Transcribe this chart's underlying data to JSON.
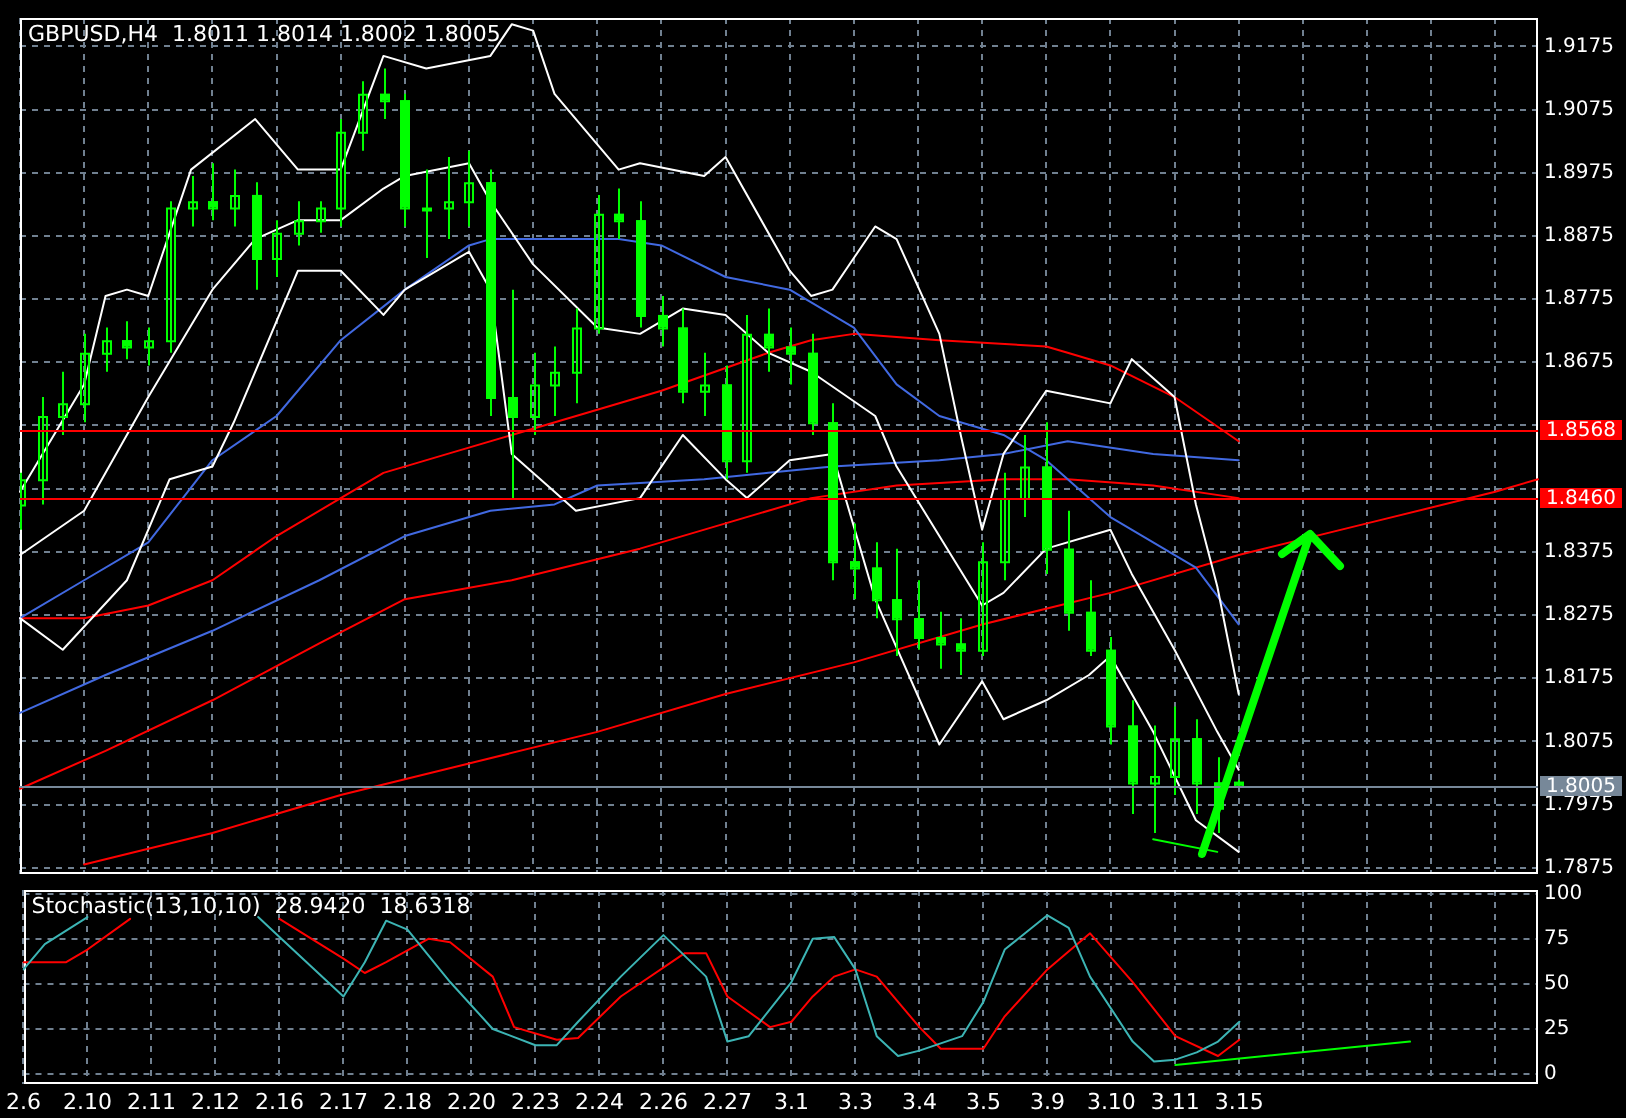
{
  "chart_data": [
    {
      "type": "candlestick",
      "title": "GBPUSD,H4  1.8011 1.8014 1.8002 1.8005",
      "color": "#00ff00",
      "categories": [
        "2.6",
        null,
        null,
        "2.10",
        null,
        null,
        "2.11",
        null,
        null,
        "2.12",
        null,
        null,
        "2.16",
        null,
        null,
        "2.17",
        null,
        null,
        "2.18",
        null,
        null,
        "2.20",
        null,
        null,
        "2.23",
        null,
        null,
        "2.24",
        null,
        null,
        "2.26",
        null,
        null,
        "2.27",
        null,
        null,
        "3.1",
        null,
        null,
        "3.3",
        null,
        null,
        "3.4",
        null,
        null,
        "3.5",
        null,
        null,
        "3.9",
        null,
        null,
        "3.10",
        null,
        null,
        "3.11",
        null,
        null,
        "3.15",
        null,
        null,
        null,
        null,
        null,
        null,
        null,
        null,
        null,
        null,
        null,
        null,
        null,
        null
      ],
      "ohlc": [
        [
          1.845,
          1.85,
          1.841,
          1.849
        ],
        [
          1.849,
          1.862,
          1.845,
          1.859
        ],
        [
          1.859,
          1.866,
          1.856,
          1.861
        ],
        [
          1.861,
          1.872,
          1.858,
          1.869
        ],
        [
          1.869,
          1.873,
          1.866,
          1.871
        ],
        [
          1.871,
          1.874,
          1.868,
          1.87
        ],
        [
          1.87,
          1.873,
          1.867,
          1.871
        ],
        [
          1.871,
          1.893,
          1.869,
          1.892
        ],
        [
          1.892,
          1.897,
          1.889,
          1.893
        ],
        [
          1.893,
          1.899,
          1.89,
          1.892
        ],
        [
          1.892,
          1.898,
          1.889,
          1.894
        ],
        [
          1.894,
          1.896,
          1.879,
          1.884
        ],
        [
          1.884,
          1.89,
          1.881,
          1.888
        ],
        [
          1.888,
          1.893,
          1.886,
          1.89
        ],
        [
          1.89,
          1.893,
          1.888,
          1.892
        ],
        [
          1.892,
          1.906,
          1.889,
          1.904
        ],
        [
          1.904,
          1.912,
          1.901,
          1.91
        ],
        [
          1.91,
          1.914,
          1.906,
          1.909
        ],
        [
          1.909,
          1.91,
          1.889,
          1.892
        ],
        [
          1.892,
          1.898,
          1.884,
          1.892
        ],
        [
          1.892,
          1.9,
          1.887,
          1.893
        ],
        [
          1.893,
          1.901,
          1.889,
          1.896
        ],
        [
          1.896,
          1.898,
          1.859,
          1.862
        ],
        [
          1.862,
          1.879,
          1.846,
          1.859
        ],
        [
          1.859,
          1.869,
          1.856,
          1.864
        ],
        [
          1.864,
          1.87,
          1.859,
          1.866
        ],
        [
          1.866,
          1.876,
          1.861,
          1.873
        ],
        [
          1.873,
          1.894,
          1.872,
          1.891
        ],
        [
          1.891,
          1.895,
          1.887,
          1.89
        ],
        [
          1.89,
          1.893,
          1.873,
          1.875
        ],
        [
          1.875,
          1.878,
          1.87,
          1.873
        ],
        [
          1.873,
          1.876,
          1.861,
          1.863
        ],
        [
          1.863,
          1.869,
          1.859,
          1.864
        ],
        [
          1.864,
          1.867,
          1.849,
          1.852
        ],
        [
          1.852,
          1.875,
          1.85,
          1.872
        ],
        [
          1.872,
          1.876,
          1.866,
          1.87
        ],
        [
          1.87,
          1.873,
          1.864,
          1.869
        ],
        [
          1.869,
          1.872,
          1.856,
          1.858
        ],
        [
          1.858,
          1.861,
          1.833,
          1.836
        ],
        [
          1.836,
          1.842,
          1.83,
          1.835
        ],
        [
          1.835,
          1.839,
          1.827,
          1.83
        ],
        [
          1.83,
          1.838,
          1.821,
          1.827
        ],
        [
          1.827,
          1.833,
          1.822,
          1.824
        ],
        [
          1.824,
          1.828,
          1.819,
          1.823
        ],
        [
          1.823,
          1.827,
          1.818,
          1.822
        ],
        [
          1.822,
          1.839,
          1.821,
          1.836
        ],
        [
          1.836,
          1.85,
          1.833,
          1.846
        ],
        [
          1.846,
          1.856,
          1.843,
          1.851
        ],
        [
          1.851,
          1.858,
          1.834,
          1.838
        ],
        [
          1.838,
          1.844,
          1.825,
          1.828
        ],
        [
          1.828,
          1.833,
          1.821,
          1.822
        ],
        [
          1.822,
          1.824,
          1.807,
          1.81
        ],
        [
          1.81,
          1.814,
          1.796,
          1.801
        ],
        [
          1.801,
          1.81,
          1.793,
          1.802
        ],
        [
          1.802,
          1.813,
          1.799,
          1.808
        ],
        [
          1.808,
          1.811,
          1.796,
          1.801
        ],
        [
          1.801,
          1.805,
          1.793,
          1.797
        ],
        [
          1.8011,
          1.8014,
          1.8002,
          1.8005
        ],
        null,
        null,
        null,
        null,
        null,
        null,
        null,
        null,
        null,
        null,
        null,
        null,
        null,
        null
      ],
      "series": [
        {
          "type": "line",
          "color": "#ffffff",
          "values": [
            1.847,
            null,
            null,
            1.864,
            1.878,
            1.879,
            1.878,
            null,
            1.898,
            null,
            null,
            1.906,
            null,
            1.898,
            null,
            1.898,
            null,
            1.916,
            null,
            1.914,
            null,
            null,
            1.916,
            1.921,
            1.92,
            1.91,
            null,
            null,
            1.898,
            1.899,
            null,
            null,
            1.897,
            1.9,
            null,
            null,
            1.882,
            1.878,
            1.879,
            1.884,
            1.889,
            1.887,
            null,
            1.872,
            1.856,
            1.841,
            1.853,
            null,
            1.863,
            null,
            null,
            1.861,
            1.868,
            null,
            1.862,
            1.845,
            1.832,
            1.815,
            null,
            null,
            null,
            null,
            null,
            null,
            null,
            null,
            null,
            null,
            null,
            null,
            null,
            null
          ]
        },
        {
          "type": "line",
          "color": "#ffffff",
          "values": [
            1.837,
            null,
            null,
            1.844,
            null,
            null,
            1.862,
            null,
            null,
            1.879,
            null,
            1.887,
            null,
            1.89,
            null,
            1.89,
            null,
            1.895,
            1.897,
            null,
            null,
            1.899,
            1.893,
            null,
            1.883,
            null,
            null,
            1.873,
            null,
            1.872,
            null,
            1.876,
            null,
            1.875,
            null,
            1.869,
            null,
            1.866,
            null,
            null,
            1.859,
            1.851,
            null,
            null,
            null,
            1.829,
            1.831,
            null,
            1.838,
            null,
            null,
            1.841,
            1.834,
            null,
            1.822,
            null,
            1.809,
            1.803,
            null,
            null,
            null,
            null,
            null,
            null,
            null,
            null,
            null,
            null,
            null,
            null,
            null,
            null
          ]
        },
        {
          "type": "line",
          "color": "#ffffff",
          "values": [
            1.827,
            null,
            1.822,
            null,
            null,
            1.833,
            null,
            1.849,
            null,
            1.851,
            1.858,
            null,
            null,
            1.882,
            null,
            1.882,
            null,
            1.875,
            1.879,
            null,
            null,
            1.885,
            1.879,
            1.853,
            null,
            1.847,
            1.844,
            null,
            null,
            1.846,
            null,
            1.856,
            null,
            1.849,
            1.846,
            null,
            1.852,
            null,
            1.853,
            null,
            1.83,
            null,
            null,
            1.807,
            null,
            1.817,
            1.811,
            null,
            1.814,
            null,
            1.818,
            1.821,
            null,
            1.809,
            null,
            1.795,
            null,
            1.79,
            null,
            null,
            null,
            null,
            null,
            null,
            null,
            null,
            null,
            null,
            null,
            null,
            null,
            null
          ]
        },
        {
          "type": "line",
          "color": "#4169e1",
          "values": [
            1.827,
            null,
            null,
            1.833,
            null,
            null,
            1.839,
            null,
            null,
            1.852,
            null,
            null,
            1.859,
            null,
            null,
            1.871,
            null,
            null,
            1.879,
            null,
            null,
            1.886,
            1.887,
            null,
            null,
            1.887,
            null,
            null,
            1.887,
            null,
            1.886,
            null,
            null,
            1.881,
            null,
            null,
            1.879,
            null,
            null,
            1.873,
            null,
            1.864,
            null,
            1.859,
            null,
            null,
            1.856,
            null,
            1.852,
            null,
            null,
            1.843,
            null,
            null,
            null,
            1.835,
            null,
            1.826,
            null,
            null,
            null,
            null,
            null,
            null,
            null,
            null,
            null,
            null,
            null,
            null,
            null,
            null
          ]
        },
        {
          "type": "line",
          "color": "#4169e1",
          "values": [
            1.812,
            null,
            null,
            null,
            1.818,
            null,
            null,
            null,
            null,
            1.825,
            null,
            null,
            null,
            null,
            1.833,
            null,
            null,
            null,
            1.84,
            null,
            null,
            null,
            1.844,
            null,
            null,
            1.845,
            null,
            1.848,
            null,
            null,
            null,
            null,
            1.849,
            null,
            null,
            1.85,
            null,
            null,
            1.851,
            null,
            null,
            null,
            null,
            1.852,
            null,
            null,
            1.853,
            null,
            null,
            1.855,
            null,
            null,
            null,
            1.853,
            null,
            null,
            null,
            1.852,
            null,
            null,
            null,
            null,
            null,
            null,
            null,
            null,
            null,
            null,
            null,
            null,
            null,
            null
          ]
        },
        {
          "type": "line",
          "color": "#ff0000",
          "values": [
            1.827,
            null,
            null,
            1.827,
            null,
            null,
            1.829,
            null,
            null,
            1.833,
            null,
            null,
            1.84,
            null,
            null,
            1.846,
            null,
            1.85,
            null,
            null,
            1.853,
            null,
            null,
            1.856,
            null,
            null,
            null,
            1.86,
            null,
            null,
            1.863,
            null,
            null,
            null,
            null,
            1.869,
            null,
            1.871,
            null,
            1.872,
            null,
            null,
            null,
            1.871,
            null,
            null,
            null,
            null,
            1.87,
            1.869,
            null,
            1.867,
            null,
            null,
            1.862,
            null,
            null,
            1.855,
            null,
            null,
            null,
            null,
            null,
            null,
            null,
            null,
            null,
            null,
            null,
            null,
            null,
            null
          ]
        },
        {
          "type": "line",
          "color": "#ff0000",
          "values": [
            1.8,
            null,
            null,
            null,
            1.806,
            null,
            null,
            null,
            null,
            1.814,
            null,
            null,
            null,
            null,
            1.823,
            null,
            null,
            null,
            1.83,
            null,
            null,
            null,
            null,
            1.833,
            null,
            null,
            null,
            null,
            null,
            1.838,
            null,
            null,
            null,
            1.842,
            null,
            null,
            null,
            1.846,
            null,
            null,
            null,
            1.848,
            null,
            null,
            null,
            null,
            1.849,
            null,
            null,
            1.849,
            null,
            null,
            null,
            1.848,
            null,
            null,
            null,
            1.846,
            null,
            null,
            null,
            null,
            null,
            null,
            null,
            null,
            null,
            null,
            null,
            null,
            null,
            null
          ]
        },
        {
          "type": "line",
          "color": "#ff0000",
          "values": [
            null,
            null,
            null,
            1.788,
            null,
            null,
            null,
            null,
            null,
            1.793,
            null,
            null,
            null,
            null,
            null,
            1.799,
            null,
            null,
            null,
            null,
            null,
            1.804,
            null,
            null,
            null,
            null,
            null,
            1.809,
            null,
            null,
            null,
            null,
            null,
            1.815,
            null,
            null,
            null,
            null,
            null,
            1.82,
            null,
            null,
            null,
            null,
            null,
            1.826,
            null,
            null,
            null,
            null,
            null,
            1.831,
            null,
            null,
            null,
            null,
            null,
            1.837,
            null,
            null,
            null,
            null,
            null,
            1.842,
            null,
            null,
            null,
            null,
            null,
            1.847,
            null,
            1.849
          ]
        },
        {
          "type": "line",
          "color": "#00ff00",
          "values": [
            null,
            null,
            null,
            null,
            null,
            null,
            null,
            null,
            null,
            null,
            null,
            null,
            null,
            null,
            null,
            null,
            null,
            null,
            null,
            null,
            null,
            null,
            null,
            null,
            null,
            null,
            null,
            null,
            null,
            null,
            null,
            null,
            null,
            null,
            null,
            null,
            null,
            null,
            null,
            null,
            null,
            null,
            null,
            null,
            null,
            null,
            null,
            null,
            null,
            null,
            null,
            null,
            null,
            1.792,
            null,
            null,
            1.79,
            null,
            null,
            null,
            null,
            null,
            null,
            null,
            null,
            null,
            null,
            null,
            null,
            null,
            null,
            null
          ]
        }
      ],
      "ref_lines": [
        {
          "axis": "y",
          "value": 1.8568,
          "label": "1.8568",
          "color": "#ff0000"
        },
        {
          "axis": "y",
          "value": 1.846,
          "label": "1.8460",
          "color": "#ff0000"
        },
        {
          "axis": "y",
          "value": 1.8005,
          "label": "1.8005",
          "color": "#778899"
        }
      ],
      "ylim": [
        1.7865,
        1.922
      ],
      "yticks": [
        1.7875,
        1.7975,
        1.8075,
        1.8175,
        1.8275,
        1.8375,
        {
          "value": 1.8475,
          "label": null
        },
        {
          "value": 1.8575,
          "label": null
        },
        1.8675,
        1.8775,
        1.8875,
        1.8975,
        1.9075,
        1.9175
      ],
      "tick_labels": "y",
      "grid": true
    },
    {
      "type": "line",
      "title": "Stochastic(13,10,10)  28.9420  18.6318",
      "categories": [
        "2.6",
        null,
        null,
        "2.10",
        null,
        null,
        "2.11",
        null,
        null,
        "2.12",
        null,
        null,
        "2.16",
        null,
        null,
        "2.17",
        null,
        null,
        "2.18",
        null,
        null,
        "2.20",
        null,
        null,
        "2.23",
        null,
        null,
        "2.24",
        null,
        null,
        "2.26",
        null,
        null,
        "2.27",
        null,
        null,
        "3.1",
        null,
        null,
        "3.3",
        null,
        null,
        "3.4",
        null,
        null,
        "3.5",
        null,
        null,
        "3.9",
        null,
        null,
        "3.10",
        null,
        null,
        "3.11",
        null,
        null,
        "3.15",
        null,
        null,
        null,
        null,
        null,
        null,
        null,
        null,
        null,
        null,
        null,
        null,
        null,
        null
      ],
      "series": [
        {
          "color": "#3cb4b4",
          "values": [
            58,
            72,
            null,
            87,
            null,
            null,
            null,
            null,
            null,
            null,
            null,
            87,
            76,
            null,
            null,
            43,
            62,
            85,
            80,
            null,
            51,
            null,
            25,
            null,
            16,
            16,
            29,
            null,
            54,
            null,
            77,
            null,
            54,
            18,
            21,
            null,
            51,
            75,
            76,
            58,
            21,
            10,
            13,
            null,
            21,
            40,
            69,
            null,
            88,
            81,
            54,
            null,
            18,
            7,
            8,
            12,
            18,
            29,
            null,
            null,
            null,
            null,
            null,
            null,
            null,
            null,
            null,
            null,
            null,
            null,
            null,
            null
          ]
        },
        {
          "color": "#ff0000",
          "values": [
            62,
            null,
            62,
            69,
            null,
            86,
            null,
            null,
            null,
            null,
            null,
            null,
            86,
            null,
            null,
            64,
            56,
            62,
            null,
            75,
            73,
            null,
            54,
            26,
            null,
            19,
            20,
            null,
            43,
            null,
            null,
            67,
            67,
            43,
            null,
            26,
            29,
            43,
            54,
            58,
            54,
            null,
            26,
            14,
            null,
            14,
            32,
            null,
            58,
            null,
            78,
            null,
            51,
            null,
            21,
            null,
            10,
            19,
            null,
            null,
            null,
            null,
            null,
            null,
            null,
            null,
            null,
            null,
            null,
            null,
            null,
            null
          ]
        },
        {
          "color": "#00ff00",
          "values": [
            null,
            null,
            null,
            null,
            null,
            null,
            null,
            null,
            null,
            null,
            null,
            null,
            null,
            null,
            null,
            null,
            null,
            null,
            null,
            null,
            null,
            null,
            null,
            null,
            null,
            null,
            null,
            null,
            null,
            null,
            null,
            null,
            null,
            null,
            null,
            null,
            null,
            null,
            null,
            null,
            null,
            null,
            null,
            null,
            null,
            null,
            null,
            null,
            null,
            null,
            null,
            null,
            null,
            null,
            5,
            null,
            null,
            null,
            null,
            11,
            null,
            null,
            null,
            null,
            null,
            18,
            null,
            null,
            null,
            null,
            null,
            null
          ]
        }
      ],
      "ylim": [
        -5.5,
        102
      ],
      "yticks": [
        0,
        25,
        50,
        75,
        100
      ],
      "grid": true
    }
  ]
}
